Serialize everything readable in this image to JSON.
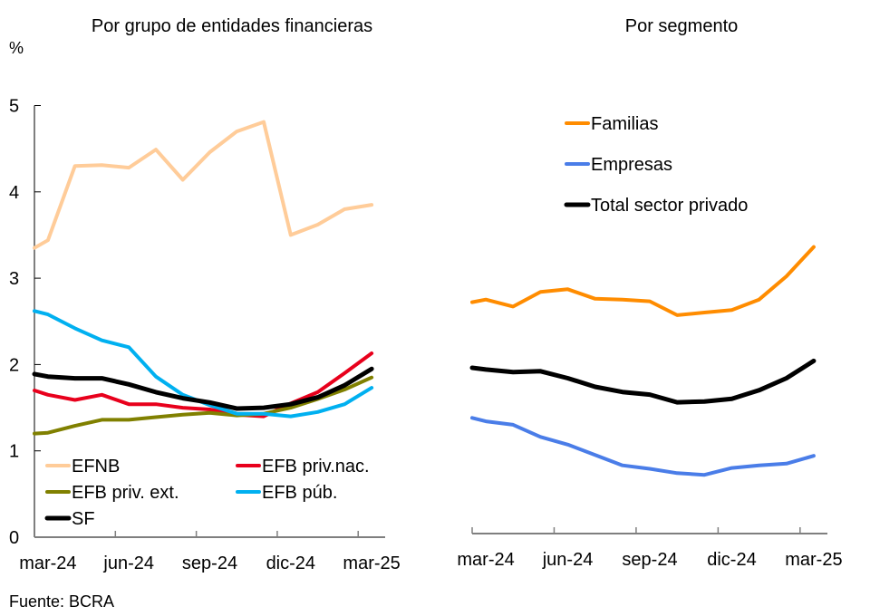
{
  "source": "Fuente: BCRA",
  "chart_data": [
    {
      "type": "line",
      "title": "Por grupo de entidades financieras",
      "ylabel": "%",
      "xlabel": "",
      "ylim": [
        0,
        5
      ],
      "yticks": [
        "0",
        "1",
        "2",
        "3",
        "4",
        "5"
      ],
      "x": [
        "mar-24",
        "abr-24",
        "may-24",
        "jun-24",
        "jul-24",
        "ago-24",
        "sep-24",
        "oct-24",
        "nov-24",
        "dic-24",
        "ene-25",
        "feb-25",
        "mar-25"
      ],
      "xtick_labels": [
        "mar-24",
        "jun-24",
        "sep-24",
        "dic-24",
        "mar-25"
      ],
      "grid": false,
      "legend_position": "bottom-left",
      "axis_start_values_note": "first value of each series is where the line meets the y-axis",
      "series": [
        {
          "name": "EFNB",
          "color": "#FFCC99",
          "start": 3.35,
          "values": [
            3.44,
            4.3,
            4.31,
            4.28,
            4.49,
            4.14,
            4.46,
            4.7,
            4.81,
            3.5,
            3.62,
            3.8,
            3.85
          ]
        },
        {
          "name": "EFB priv.nac.",
          "color": "#E8001C",
          "start": 1.7,
          "values": [
            1.65,
            1.59,
            1.65,
            1.54,
            1.54,
            1.5,
            1.48,
            1.42,
            1.4,
            1.55,
            1.68,
            1.9,
            2.13
          ]
        },
        {
          "name": "EFB priv. ext.",
          "color": "#808000",
          "start": 1.2,
          "values": [
            1.21,
            1.29,
            1.36,
            1.36,
            1.39,
            1.42,
            1.44,
            1.41,
            1.43,
            1.5,
            1.6,
            1.71,
            1.85
          ]
        },
        {
          "name": "EFB púb.",
          "color": "#00B0F0",
          "start": 2.62,
          "values": [
            2.58,
            2.42,
            2.28,
            2.2,
            1.86,
            1.65,
            1.53,
            1.43,
            1.43,
            1.4,
            1.45,
            1.54,
            1.73
          ]
        },
        {
          "name": "SF",
          "color": "#000000",
          "start": 1.89,
          "values": [
            1.86,
            1.84,
            1.84,
            1.77,
            1.68,
            1.61,
            1.56,
            1.49,
            1.5,
            1.54,
            1.62,
            1.76,
            1.95
          ]
        }
      ]
    },
    {
      "type": "line",
      "title": "Por segmento",
      "ylabel": "",
      "xlabel": "",
      "ylim": [
        0,
        5
      ],
      "x": [
        "mar-24",
        "abr-24",
        "may-24",
        "jun-24",
        "jul-24",
        "ago-24",
        "sep-24",
        "oct-24",
        "nov-24",
        "dic-24",
        "ene-25",
        "feb-25",
        "mar-25"
      ],
      "xtick_labels": [
        "mar-24",
        "jun-24",
        "sep-24",
        "dic-24",
        "mar-25"
      ],
      "grid": false,
      "legend_position": "top",
      "series": [
        {
          "name": "Familias",
          "color": "#FF8C00",
          "start": 2.68,
          "values": [
            2.71,
            2.63,
            2.8,
            2.83,
            2.72,
            2.71,
            2.69,
            2.53,
            2.56,
            2.59,
            2.71,
            2.98,
            3.32
          ]
        },
        {
          "name": "Empresas",
          "color": "#4A7DE8",
          "start": 1.34,
          "values": [
            1.3,
            1.26,
            1.12,
            1.03,
            0.91,
            0.79,
            0.75,
            0.7,
            0.68,
            0.76,
            0.79,
            0.81,
            0.9
          ]
        },
        {
          "name": "Total sector privado",
          "color": "#000000",
          "start": 1.92,
          "values": [
            1.9,
            1.87,
            1.88,
            1.8,
            1.7,
            1.64,
            1.61,
            1.52,
            1.53,
            1.56,
            1.66,
            1.8,
            2.0
          ]
        }
      ]
    }
  ]
}
